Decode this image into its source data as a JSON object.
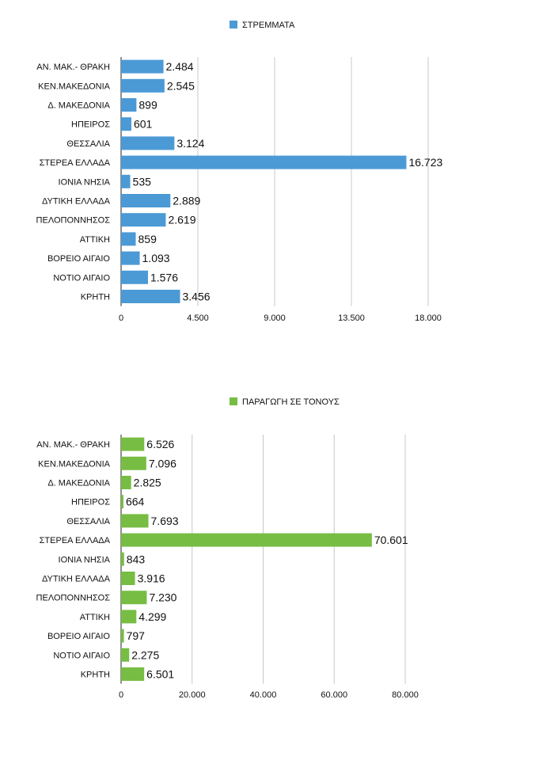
{
  "chart_data": [
    {
      "type": "bar",
      "orientation": "horizontal",
      "legend_position": "top-center",
      "color": "#4b9ad6",
      "grid": true,
      "categories": [
        "ΑΝ. ΜΑΚ.- ΘΡΑΚΗ",
        "ΚΕΝ.ΜΑΚΕΔΟΝΙΑ",
        "Δ. ΜΑΚΕΔΟΝΙΑ",
        "ΗΠΕΙΡΟΣ",
        "ΘΕΣΣΑΛΙΑ",
        "ΣΤΕΡΕΑ ΕΛΛΑΔΑ",
        "ΙΟΝΙΑ ΝΗΣΙΑ",
        "ΔΥΤΙΚΗ ΕΛΛΑΔΑ",
        "ΠΕΛΟΠΟΝΝΗΣΟΣ",
        "ΑΤΤΙΚΗ",
        "ΒΟΡΕΙΟ ΑΙΓΑΙΟ",
        "ΝΟΤΙΟ ΑΙΓΑΙΟ",
        "ΚΡΗΤΗ"
      ],
      "series": [
        {
          "name": "ΣΤΡΕΜΜΑΤΑ",
          "values": [
            2484,
            2545,
            899,
            601,
            3124,
            16723,
            535,
            2889,
            2619,
            859,
            1093,
            1576,
            3456
          ],
          "value_labels": [
            "2.484",
            "2.545",
            "899",
            "601",
            "3.124",
            "16.723",
            "535",
            "2.889",
            "2.619",
            "859",
            "1.093",
            "1.576",
            "3.456"
          ]
        }
      ],
      "xlim": [
        0,
        18000
      ],
      "ticks": [
        0,
        4500,
        9000,
        13500,
        18000
      ],
      "tick_labels": [
        "0",
        "4.500",
        "9.000",
        "13.500",
        "18.000"
      ]
    },
    {
      "type": "bar",
      "orientation": "horizontal",
      "legend_position": "top-center",
      "color": "#77bd43",
      "grid": true,
      "categories": [
        "ΑΝ. ΜΑΚ.- ΘΡΑΚΗ",
        "ΚΕΝ.ΜΑΚΕΔΟΝΙΑ",
        "Δ. ΜΑΚΕΔΟΝΙΑ",
        "ΗΠΕΙΡΟΣ",
        "ΘΕΣΣΑΛΙΑ",
        "ΣΤΕΡΕΑ ΕΛΛΑΔΑ",
        "ΙΟΝΙΑ ΝΗΣΙΑ",
        "ΔΥΤΙΚΗ ΕΛΛΑΔΑ",
        "ΠΕΛΟΠΟΝΝΗΣΟΣ",
        "ΑΤΤΙΚΗ",
        "ΒΟΡΕΙΟ ΑΙΓΑΙΟ",
        "ΝΟΤΙΟ ΑΙΓΑΙΟ",
        "ΚΡΗΤΗ"
      ],
      "series": [
        {
          "name": "ΠΑΡΑΓΩΓΗ ΣΕ ΤΟΝΟΥΣ",
          "values": [
            6526,
            7096,
            2825,
            664,
            7693,
            70601,
            843,
            3916,
            7230,
            4299,
            797,
            2275,
            6501
          ],
          "value_labels": [
            "6.526",
            "7.096",
            "2.825",
            "664",
            "7.693",
            "70.601",
            "843",
            "3.916",
            "7.230",
            "4.299",
            "797",
            "2.275",
            "6.501"
          ]
        }
      ],
      "xlim": [
        0,
        80000
      ],
      "ticks": [
        0,
        20000,
        40000,
        60000,
        80000
      ],
      "tick_labels": [
        "0",
        "20.000",
        "40.000",
        "60.000",
        "80.000"
      ]
    }
  ]
}
